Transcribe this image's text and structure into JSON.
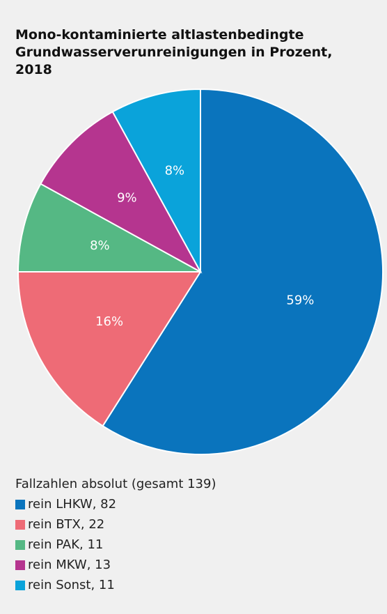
{
  "chart_data": {
    "type": "pie",
    "title": "Mono-kontaminierte altlastenbedingte Grundwasserverunreinigungen in Prozent, 2018",
    "legend_title": "Fallzahlen absolut (gesamt 139)",
    "categories": [
      "rein LHKW, 82",
      "rein BTX, 22",
      "rein PAK, 11",
      "rein MKW, 13",
      "rein Sonst, 11"
    ],
    "values": [
      59,
      16,
      8,
      9,
      8
    ],
    "value_labels": [
      "59%",
      "16%",
      "8%",
      "9%",
      "8%"
    ],
    "colors": [
      "#0a74bd",
      "#ee6b76",
      "#55b884",
      "#b5358f",
      "#0aa3da"
    ]
  }
}
